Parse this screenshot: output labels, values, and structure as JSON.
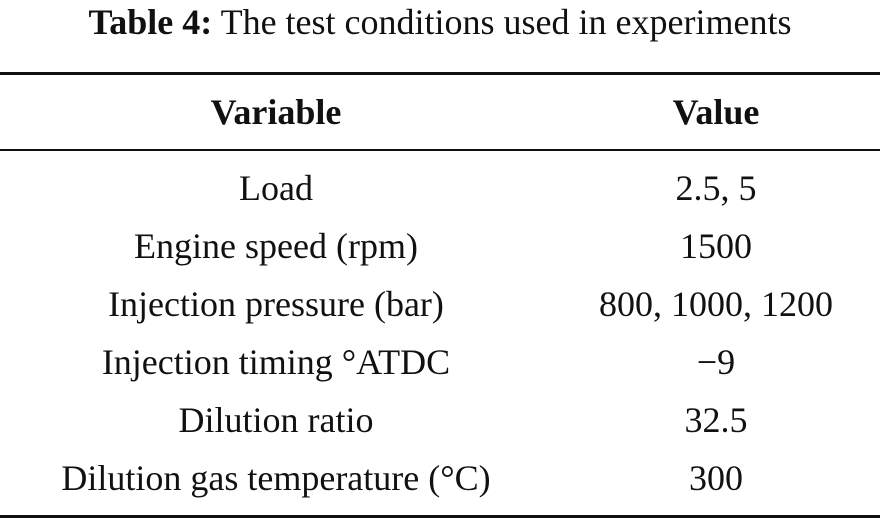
{
  "caption": {
    "label": "Table 4:",
    "text": "The test conditions used in experiments"
  },
  "table": {
    "headers": [
      "Variable",
      "Value"
    ],
    "rows": [
      [
        "Load",
        "2.5, 5"
      ],
      [
        "Engine speed (rpm)",
        "1500"
      ],
      [
        "Injection pressure (bar)",
        "800, 1000, 1200"
      ],
      [
        "Injection timing °ATDC",
        "−9"
      ],
      [
        "Dilution ratio",
        "32.5"
      ],
      [
        "Dilution gas temperature (°C)",
        "300"
      ]
    ]
  }
}
